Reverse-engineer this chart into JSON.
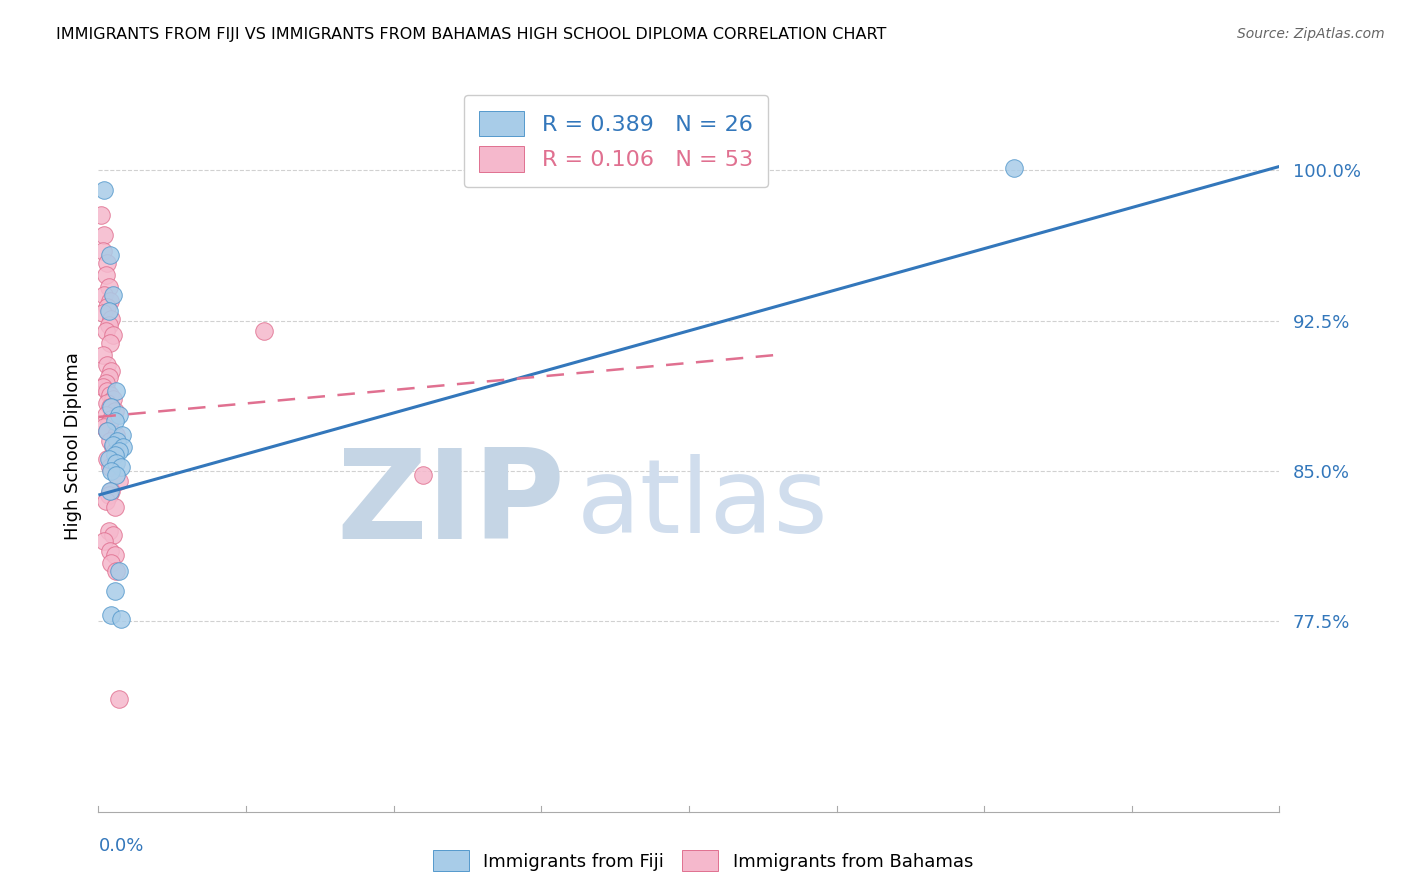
{
  "title": "IMMIGRANTS FROM FIJI VS IMMIGRANTS FROM BAHAMAS HIGH SCHOOL DIPLOMA CORRELATION CHART",
  "source": "Source: ZipAtlas.com",
  "ylabel": "High School Diploma",
  "yticks": [
    0.775,
    0.85,
    0.925,
    1.0
  ],
  "ytick_labels": [
    "77.5%",
    "85.0%",
    "92.5%",
    "100.0%"
  ],
  "xmin": 0.0,
  "xmax": 0.2,
  "ymin": 0.68,
  "ymax": 1.045,
  "fiji_dot_color": "#a8cce8",
  "fiji_edge_color": "#5599cc",
  "bahamas_dot_color": "#f5b8cc",
  "bahamas_edge_color": "#e07090",
  "fiji_line_color": "#3377bb",
  "bahamas_line_color": "#e07090",
  "fiji_R": 0.389,
  "fiji_N": 26,
  "bahamas_R": 0.106,
  "bahamas_N": 53,
  "fiji_scatter_x": [
    0.001,
    0.002,
    0.0025,
    0.0018,
    0.003,
    0.0022,
    0.0035,
    0.0028,
    0.0015,
    0.004,
    0.0032,
    0.0025,
    0.0042,
    0.0035,
    0.0028,
    0.0018,
    0.003,
    0.0038,
    0.0022,
    0.003,
    0.002,
    0.0035,
    0.0028,
    0.0022,
    0.155,
    0.0038
  ],
  "fiji_scatter_y": [
    0.99,
    0.958,
    0.938,
    0.93,
    0.89,
    0.882,
    0.878,
    0.875,
    0.87,
    0.868,
    0.865,
    0.863,
    0.862,
    0.86,
    0.858,
    0.856,
    0.854,
    0.852,
    0.85,
    0.848,
    0.84,
    0.8,
    0.79,
    0.778,
    1.001,
    0.776
  ],
  "bahamas_scatter_x": [
    0.0005,
    0.001,
    0.0008,
    0.0015,
    0.0012,
    0.0018,
    0.001,
    0.002,
    0.0015,
    0.0008,
    0.0022,
    0.0018,
    0.0012,
    0.0025,
    0.002,
    0.0008,
    0.0015,
    0.0022,
    0.0018,
    0.0012,
    0.0008,
    0.0015,
    0.002,
    0.0025,
    0.0015,
    0.002,
    0.0028,
    0.0012,
    0.0022,
    0.0018,
    0.001,
    0.0015,
    0.003,
    0.002,
    0.0025,
    0.0028,
    0.0015,
    0.002,
    0.055,
    0.0035,
    0.0022,
    0.0018,
    0.0012,
    0.0028,
    0.0018,
    0.0025,
    0.001,
    0.002,
    0.0028,
    0.0022,
    0.003,
    0.0035,
    0.028
  ],
  "bahamas_scatter_y": [
    0.978,
    0.968,
    0.96,
    0.954,
    0.948,
    0.942,
    0.938,
    0.935,
    0.932,
    0.929,
    0.926,
    0.923,
    0.92,
    0.918,
    0.914,
    0.908,
    0.903,
    0.9,
    0.897,
    0.894,
    0.892,
    0.89,
    0.888,
    0.886,
    0.884,
    0.882,
    0.88,
    0.878,
    0.876,
    0.874,
    0.872,
    0.87,
    0.868,
    0.865,
    0.862,
    0.86,
    0.856,
    0.852,
    0.848,
    0.845,
    0.84,
    0.838,
    0.835,
    0.832,
    0.82,
    0.818,
    0.815,
    0.81,
    0.808,
    0.804,
    0.8,
    0.736,
    0.92
  ],
  "fiji_line_x0": 0.0,
  "fiji_line_y0": 0.838,
  "fiji_line_x1": 0.2,
  "fiji_line_y1": 1.002,
  "bahamas_line_x0": 0.0,
  "bahamas_line_y0": 0.877,
  "bahamas_line_x1": 0.115,
  "bahamas_line_y1": 0.908,
  "watermark_zip_color": "#bbccdd",
  "watermark_atlas_color": "#c8d8e8",
  "grid_color": "#cccccc",
  "axis_color": "#aaaaaa",
  "tick_label_color": "#3377bb",
  "bottom_label_color": "#3377bb"
}
